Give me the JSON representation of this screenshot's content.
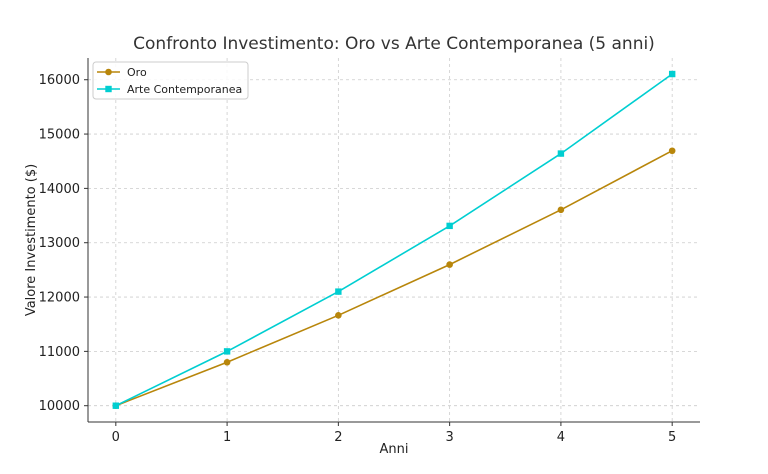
{
  "chart_data": {
    "type": "line",
    "title": "Confronto Investimento: Oro vs Arte Contemporanea (5 anni)",
    "xlabel": "Anni",
    "ylabel": "Valore Investimento ($)",
    "x": [
      0,
      1,
      2,
      3,
      4,
      5
    ],
    "xticks": [
      "0",
      "1",
      "2",
      "3",
      "4",
      "5"
    ],
    "yticks": [
      "10000",
      "11000",
      "12000",
      "13000",
      "14000",
      "15000",
      "16000"
    ],
    "xlim": [
      -0.25,
      5.25
    ],
    "ylim": [
      9700,
      16400
    ],
    "grid": true,
    "legend_position": "top-left",
    "series": [
      {
        "name": "Oro",
        "values": [
          10000,
          10800,
          11664,
          12597,
          13605,
          14693
        ],
        "color": "#b8860b",
        "marker": "circle"
      },
      {
        "name": "Arte Contemporanea",
        "values": [
          10000,
          11000,
          12100,
          13310,
          14641,
          16105
        ],
        "color": "#00ced1",
        "marker": "square"
      }
    ]
  }
}
